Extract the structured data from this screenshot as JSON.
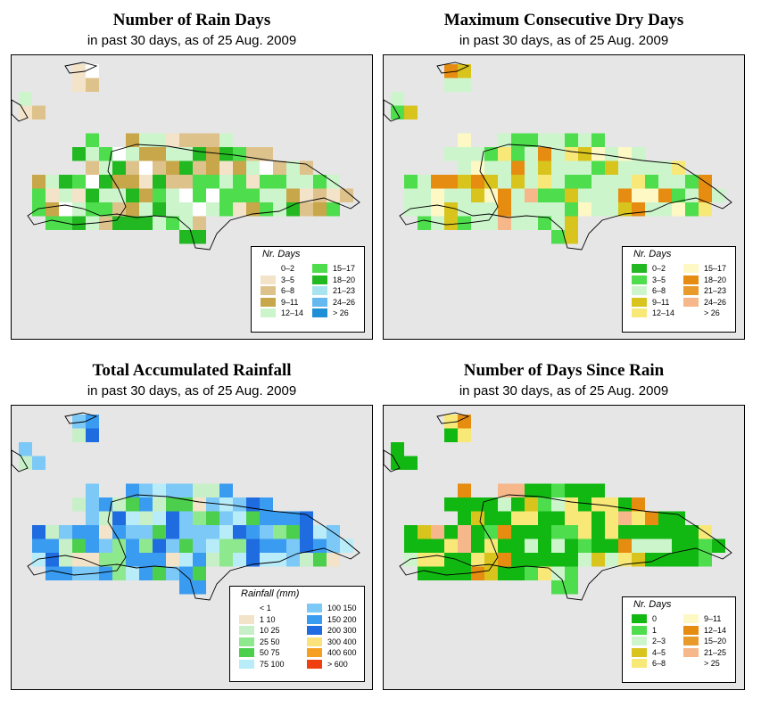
{
  "colors": {
    "background_map": "#e6e6e6",
    "coastline": "#000000"
  },
  "panels": [
    {
      "id": "rain-days",
      "title": "Number of Rain Days",
      "subtitle": "in past 30 days, as of  25 Aug. 2009",
      "legend": {
        "title": "Nr. Days",
        "items": [
          {
            "label": "0–2",
            "color": "#ffffff"
          },
          {
            "label": "3–5",
            "color": "#f3e3c8"
          },
          {
            "label": "6–8",
            "color": "#ddc28c"
          },
          {
            "label": "9–11",
            "color": "#c8a64a"
          },
          {
            "label": "12–14",
            "color": "#ccf5cc"
          },
          {
            "label": "15–17",
            "color": "#4ddd4d"
          },
          {
            "label": "18–20",
            "color": "#22b822"
          },
          {
            "label": "21–23",
            "color": "#a8e4f0"
          },
          {
            "label": "24–26",
            "color": "#66b8f0"
          },
          {
            "label": "> 26",
            "color": "#1f8fd6"
          }
        ]
      }
    },
    {
      "id": "dry-days",
      "title": "Maximum Consecutive Dry Days",
      "subtitle": "in past 30 days, as of  25 Aug. 2009",
      "legend": {
        "title": "Nr. Days",
        "items": [
          {
            "label": "0–2",
            "color": "#22b822"
          },
          {
            "label": "3–5",
            "color": "#4ddd4d"
          },
          {
            "label": "6–8",
            "color": "#ccf5cc"
          },
          {
            "label": "9–11",
            "color": "#d8c41c"
          },
          {
            "label": "12–14",
            "color": "#f8e878"
          },
          {
            "label": "15–17",
            "color": "#fdf8c4"
          },
          {
            "label": "18–20",
            "color": "#e68c10"
          },
          {
            "label": "21–23",
            "color": "#e89a2a"
          },
          {
            "label": "24–26",
            "color": "#f6b88a"
          },
          {
            "label": "> 26",
            "color": "#ffffff"
          }
        ]
      }
    },
    {
      "id": "rainfall",
      "title": "Total Accumulated Rainfall",
      "subtitle": "in past 30 days, as of  25 Aug. 2009",
      "legend": {
        "title": "Rainfall (mm)",
        "items": [
          {
            "label": "< 1",
            "color": "#ffffff"
          },
          {
            "label": "1  10",
            "color": "#f3e3c8"
          },
          {
            "label": "10  25",
            "color": "#c8f0c8"
          },
          {
            "label": "25  50",
            "color": "#8ee88e"
          },
          {
            "label": "50  75",
            "color": "#4ccf4c"
          },
          {
            "label": "75  100",
            "color": "#b8ecf8"
          },
          {
            "label": "100  150",
            "color": "#7cc8f6"
          },
          {
            "label": "150  200",
            "color": "#3a9cf0"
          },
          {
            "label": "200  300",
            "color": "#1f6ce0"
          },
          {
            "label": "300  400",
            "color": "#fce27a"
          },
          {
            "label": "400  600",
            "color": "#f5a020"
          },
          {
            "label": "> 600",
            "color": "#f04010"
          }
        ]
      }
    },
    {
      "id": "since-rain",
      "title": "Number of Days Since Rain",
      "subtitle": "in past 30 days, as of  25 Aug. 2009",
      "legend": {
        "title": "Nr. Days",
        "items": [
          {
            "label": "0",
            "color": "#12b812"
          },
          {
            "label": "1",
            "color": "#4ddd4d"
          },
          {
            "label": "2–3",
            "color": "#ccf5cc"
          },
          {
            "label": "4–5",
            "color": "#d8c41c"
          },
          {
            "label": "6–8",
            "color": "#f8e878"
          },
          {
            "label": "9–11",
            "color": "#fdf8c4"
          },
          {
            "label": "12–14",
            "color": "#e68c10"
          },
          {
            "label": "15–20",
            "color": "#e89a2a"
          },
          {
            "label": "21–25",
            "color": "#f6b88a"
          },
          {
            "label": "> 25",
            "color": "#ffffff"
          }
        ]
      }
    }
  ]
}
